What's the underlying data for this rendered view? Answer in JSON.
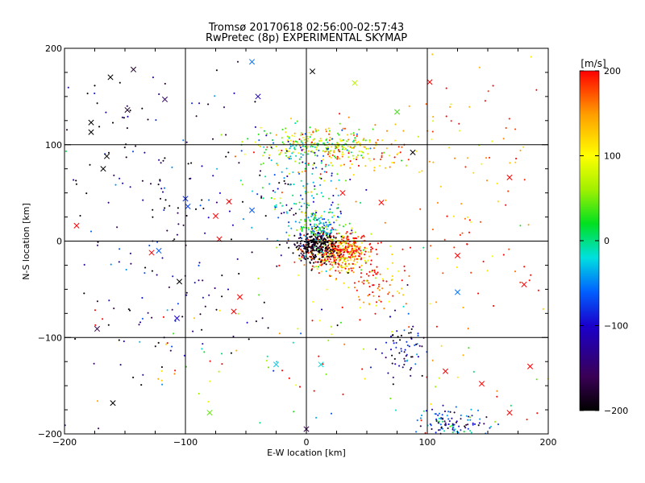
{
  "chart_data": {
    "type": "scatter",
    "title": "Tromsø 20170618 02:56:00-02:57:43",
    "subtitle": "RwPretec (8p) EXPERIMENTAL SKYMAP",
    "xlabel": "E-W location [km]",
    "ylabel": "N-S location [km]",
    "xlim": [
      -200,
      200
    ],
    "ylim": [
      -200,
      200
    ],
    "xticks": [
      -200,
      -100,
      0,
      100,
      200
    ],
    "yticks": [
      -200,
      -100,
      0,
      100,
      200
    ],
    "grid": true,
    "colorbar": {
      "label": "[m/s]",
      "range": [
        -200,
        200
      ],
      "ticks": [
        200,
        100,
        0,
        -100,
        -200
      ],
      "colormap": [
        "#000000",
        "#3a0055",
        "#1a00cc",
        "#0060ff",
        "#00e0e0",
        "#00e020",
        "#a0f000",
        "#ffff00",
        "#ffa000",
        "#ff0000"
      ]
    },
    "marker_legend": "none",
    "points_sample_note": "",
    "clusters": [
      {
        "cx": 25,
        "cy": -10,
        "sx": 14,
        "sy": 10,
        "n": 520,
        "v": 170,
        "vs": 70
      },
      {
        "cx": 8,
        "cy": -5,
        "sx": 8,
        "sy": 8,
        "n": 260,
        "v": -190,
        "vs": 20
      },
      {
        "cx": 10,
        "cy": 15,
        "sx": 10,
        "sy": 10,
        "n": 140,
        "v": -20,
        "vs": 60
      },
      {
        "cx": 5,
        "cy": 100,
        "sx": 25,
        "sy": 8,
        "n": 220,
        "v": 60,
        "vs": 70
      },
      {
        "cx": 40,
        "cy": 95,
        "sx": 25,
        "sy": 15,
        "n": 120,
        "v": 150,
        "vs": 60
      },
      {
        "cx": -5,
        "cy": 55,
        "sx": 20,
        "sy": 25,
        "n": 140,
        "v": -30,
        "vs": 80
      },
      {
        "cx": 55,
        "cy": -45,
        "sx": 12,
        "sy": 12,
        "n": 80,
        "v": 160,
        "vs": 60
      },
      {
        "cx": 80,
        "cy": -110,
        "sx": 10,
        "sy": 18,
        "n": 70,
        "v": -150,
        "vs": 60
      },
      {
        "cx": 120,
        "cy": -188,
        "sx": 15,
        "sy": 8,
        "n": 110,
        "v": -80,
        "vs": 60
      },
      {
        "cx": -120,
        "cy": 20,
        "sx": 60,
        "sy": 90,
        "n": 260,
        "v": -150,
        "vs": 60
      },
      {
        "cx": 120,
        "cy": 50,
        "sx": 50,
        "sy": 80,
        "n": 120,
        "v": 170,
        "vs": 40
      },
      {
        "cx": 0,
        "cy": -120,
        "sx": 120,
        "sy": 50,
        "n": 120,
        "v": 120,
        "vs": 120
      }
    ],
    "x_markers": [
      {
        "x": -143,
        "y": 178,
        "v": -180
      },
      {
        "x": -162,
        "y": 170,
        "v": -200
      },
      {
        "x": -178,
        "y": 123,
        "v": -200
      },
      {
        "x": -178,
        "y": 113,
        "v": -200
      },
      {
        "x": -165,
        "y": 88,
        "v": -200
      },
      {
        "x": -168,
        "y": 75,
        "v": -200
      },
      {
        "x": -45,
        "y": 186,
        "v": -60
      },
      {
        "x": -40,
        "y": 150,
        "v": -120
      },
      {
        "x": -117,
        "y": 147,
        "v": -150
      },
      {
        "x": -148,
        "y": 136,
        "v": -180
      },
      {
        "x": 5,
        "y": 176,
        "v": -200
      },
      {
        "x": 40,
        "y": 164,
        "v": 80
      },
      {
        "x": 102,
        "y": 165,
        "v": 200
      },
      {
        "x": 75,
        "y": 134,
        "v": 40
      },
      {
        "x": 88,
        "y": 92,
        "v": -200
      },
      {
        "x": 168,
        "y": 66,
        "v": 200
      },
      {
        "x": -100,
        "y": 44,
        "v": -90
      },
      {
        "x": -98,
        "y": 36,
        "v": -80
      },
      {
        "x": -64,
        "y": 41,
        "v": 200
      },
      {
        "x": -45,
        "y": 32,
        "v": -70
      },
      {
        "x": -75,
        "y": 26,
        "v": 200
      },
      {
        "x": 30,
        "y": 50,
        "v": 200
      },
      {
        "x": 62,
        "y": 40,
        "v": 200
      },
      {
        "x": -72,
        "y": 2,
        "v": 200
      },
      {
        "x": -190,
        "y": 16,
        "v": 200
      },
      {
        "x": -122,
        "y": -10,
        "v": -70
      },
      {
        "x": -128,
        "y": -12,
        "v": 200
      },
      {
        "x": -105,
        "y": -42,
        "v": -200
      },
      {
        "x": -55,
        "y": -58,
        "v": 200
      },
      {
        "x": -107,
        "y": -80,
        "v": -110
      },
      {
        "x": -60,
        "y": -73,
        "v": 200
      },
      {
        "x": -173,
        "y": -91,
        "v": -160
      },
      {
        "x": -160,
        "y": -168,
        "v": -200
      },
      {
        "x": -80,
        "y": -178,
        "v": 50
      },
      {
        "x": 0,
        "y": -195,
        "v": -160
      },
      {
        "x": -25,
        "y": -128,
        "v": -30
      },
      {
        "x": 12,
        "y": -128,
        "v": -20
      },
      {
        "x": 125,
        "y": -15,
        "v": 200
      },
      {
        "x": 125,
        "y": -53,
        "v": -60
      },
      {
        "x": 180,
        "y": -45,
        "v": 200
      },
      {
        "x": 185,
        "y": -130,
        "v": 200
      },
      {
        "x": 145,
        "y": -148,
        "v": 200
      },
      {
        "x": 168,
        "y": -178,
        "v": 200
      },
      {
        "x": 115,
        "y": -135,
        "v": 200
      }
    ]
  }
}
